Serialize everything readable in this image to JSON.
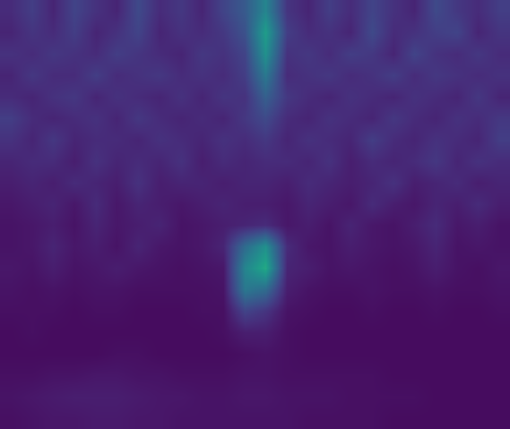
{
  "chart_data": {
    "type": "heatmap",
    "color": "Viridis",
    "tick_labels": false,
    "zlim": [
      0,
      1
    ],
    "cells": [
      [
        0.12,
        0.18,
        0.1,
        0.2,
        0.14,
        0.1,
        0.22,
        0.12,
        0.16,
        0.1,
        0.2,
        0.28,
        0.45,
        0.15,
        0.1,
        0.18,
        0.12,
        0.2,
        0.14,
        0.1,
        0.22,
        0.16,
        0.12,
        0.18
      ],
      [
        0.1,
        0.15,
        0.12,
        0.18,
        0.1,
        0.14,
        0.2,
        0.1,
        0.14,
        0.12,
        0.16,
        0.25,
        0.55,
        0.18,
        0.12,
        0.14,
        0.1,
        0.22,
        0.12,
        0.14,
        0.18,
        0.2,
        0.1,
        0.15
      ],
      [
        0.14,
        0.12,
        0.16,
        0.14,
        0.12,
        0.18,
        0.15,
        0.12,
        0.1,
        0.16,
        0.14,
        0.2,
        0.5,
        0.14,
        0.16,
        0.12,
        0.18,
        0.16,
        0.1,
        0.2,
        0.14,
        0.12,
        0.16,
        0.12
      ],
      [
        0.1,
        0.16,
        0.12,
        0.12,
        0.18,
        0.12,
        0.14,
        0.16,
        0.12,
        0.14,
        0.12,
        0.18,
        0.4,
        0.12,
        0.14,
        0.16,
        0.12,
        0.14,
        0.18,
        0.12,
        0.16,
        0.14,
        0.12,
        0.14
      ],
      [
        0.12,
        0.1,
        0.14,
        0.16,
        0.1,
        0.14,
        0.12,
        0.1,
        0.14,
        0.1,
        0.15,
        0.14,
        0.3,
        0.16,
        0.12,
        0.1,
        0.14,
        0.12,
        0.1,
        0.14,
        0.12,
        0.1,
        0.16,
        0.1
      ],
      [
        0.18,
        0.12,
        0.1,
        0.12,
        0.14,
        0.1,
        0.16,
        0.12,
        0.1,
        0.12,
        0.1,
        0.16,
        0.22,
        0.12,
        0.1,
        0.14,
        0.12,
        0.1,
        0.16,
        0.12,
        0.1,
        0.14,
        0.12,
        0.16
      ],
      [
        0.14,
        0.1,
        0.16,
        0.1,
        0.12,
        0.12,
        0.1,
        0.14,
        0.12,
        0.1,
        0.14,
        0.12,
        0.16,
        0.1,
        0.14,
        0.12,
        0.1,
        0.18,
        0.12,
        0.1,
        0.14,
        0.12,
        0.1,
        0.18
      ],
      [
        0.1,
        0.12,
        0.12,
        0.08,
        0.14,
        0.1,
        0.12,
        0.1,
        0.14,
        0.08,
        0.12,
        0.1,
        0.12,
        0.12,
        0.1,
        0.14,
        0.08,
        0.12,
        0.1,
        0.12,
        0.16,
        0.1,
        0.14,
        0.12
      ],
      [
        0.08,
        0.1,
        0.08,
        0.12,
        0.1,
        0.08,
        0.14,
        0.08,
        0.1,
        0.1,
        0.08,
        0.1,
        0.1,
        0.08,
        0.12,
        0.1,
        0.08,
        0.1,
        0.14,
        0.08,
        0.1,
        0.12,
        0.08,
        0.1
      ],
      [
        0.06,
        0.08,
        0.1,
        0.06,
        0.12,
        0.06,
        0.1,
        0.08,
        0.06,
        0.08,
        0.1,
        0.08,
        0.08,
        0.06,
        0.1,
        0.08,
        0.06,
        0.12,
        0.08,
        0.06,
        0.1,
        0.08,
        0.12,
        0.08
      ],
      [
        0.05,
        0.06,
        0.08,
        0.05,
        0.1,
        0.06,
        0.08,
        0.1,
        0.05,
        0.06,
        0.08,
        0.1,
        0.12,
        0.06,
        0.08,
        0.05,
        0.1,
        0.06,
        0.05,
        0.08,
        0.12,
        0.06,
        0.08,
        0.05
      ],
      [
        0.05,
        0.06,
        0.1,
        0.06,
        0.08,
        0.05,
        0.1,
        0.06,
        0.05,
        0.06,
        0.1,
        0.35,
        0.5,
        0.12,
        0.06,
        0.05,
        0.08,
        0.06,
        0.05,
        0.06,
        0.1,
        0.05,
        0.06,
        0.05
      ],
      [
        0.06,
        0.05,
        0.08,
        0.05,
        0.06,
        0.08,
        0.06,
        0.05,
        0.04,
        0.05,
        0.06,
        0.45,
        0.6,
        0.1,
        0.08,
        0.05,
        0.06,
        0.05,
        0.04,
        0.05,
        0.08,
        0.05,
        0.04,
        0.06
      ],
      [
        0.05,
        0.04,
        0.05,
        0.04,
        0.05,
        0.05,
        0.04,
        0.04,
        0.04,
        0.04,
        0.05,
        0.4,
        0.35,
        0.08,
        0.05,
        0.04,
        0.04,
        0.05,
        0.04,
        0.04,
        0.05,
        0.04,
        0.04,
        0.05
      ],
      [
        0.04,
        0.04,
        0.04,
        0.03,
        0.04,
        0.04,
        0.03,
        0.03,
        0.03,
        0.04,
        0.04,
        0.2,
        0.15,
        0.05,
        0.04,
        0.03,
        0.03,
        0.04,
        0.03,
        0.03,
        0.04,
        0.03,
        0.03,
        0.04
      ],
      [
        0.03,
        0.04,
        0.03,
        0.03,
        0.03,
        0.03,
        0.03,
        0.03,
        0.03,
        0.03,
        0.04,
        0.08,
        0.08,
        0.04,
        0.03,
        0.03,
        0.03,
        0.03,
        0.03,
        0.03,
        0.03,
        0.03,
        0.03,
        0.03
      ],
      [
        0.03,
        0.03,
        0.03,
        0.03,
        0.03,
        0.04,
        0.04,
        0.03,
        0.03,
        0.03,
        0.03,
        0.04,
        0.05,
        0.04,
        0.03,
        0.03,
        0.03,
        0.03,
        0.03,
        0.03,
        0.03,
        0.03,
        0.03,
        0.03
      ],
      [
        0.04,
        0.04,
        0.05,
        0.05,
        0.06,
        0.06,
        0.05,
        0.05,
        0.04,
        0.04,
        0.04,
        0.05,
        0.05,
        0.04,
        0.04,
        0.04,
        0.04,
        0.04,
        0.03,
        0.03,
        0.03,
        0.03,
        0.03,
        0.03
      ],
      [
        0.05,
        0.06,
        0.07,
        0.08,
        0.08,
        0.08,
        0.07,
        0.06,
        0.06,
        0.05,
        0.05,
        0.06,
        0.06,
        0.05,
        0.05,
        0.05,
        0.04,
        0.04,
        0.04,
        0.04,
        0.03,
        0.03,
        0.03,
        0.03
      ],
      [
        0.04,
        0.05,
        0.06,
        0.06,
        0.07,
        0.07,
        0.06,
        0.06,
        0.05,
        0.05,
        0.05,
        0.05,
        0.05,
        0.05,
        0.04,
        0.04,
        0.04,
        0.04,
        0.03,
        0.03,
        0.03,
        0.03,
        0.03,
        0.03
      ]
    ]
  }
}
